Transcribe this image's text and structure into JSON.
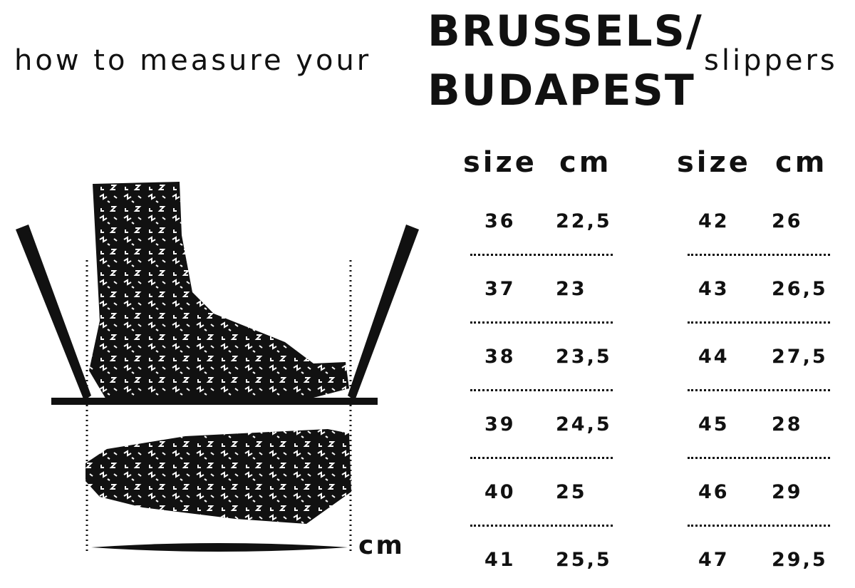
{
  "title": {
    "prefix": "how to measure your",
    "model_line1": "BRUSSELS/",
    "model_line2": "BUDAPEST",
    "suffix": "slippers"
  },
  "illustration": {
    "unit_label": "cm",
    "icons": [
      "foot-side-icon",
      "foot-sole-icon",
      "pencil-icon"
    ]
  },
  "size_table": {
    "headers": {
      "size": "size",
      "cm": "cm"
    },
    "left": [
      {
        "size": "36",
        "cm": "22,5"
      },
      {
        "size": "37",
        "cm": "23"
      },
      {
        "size": "38",
        "cm": "23,5"
      },
      {
        "size": "39",
        "cm": "24,5"
      },
      {
        "size": "40",
        "cm": "25"
      },
      {
        "size": "41",
        "cm": "25,5"
      }
    ],
    "right": [
      {
        "size": "42",
        "cm": "26"
      },
      {
        "size": "43",
        "cm": "26,5"
      },
      {
        "size": "44",
        "cm": "27,5"
      },
      {
        "size": "45",
        "cm": "28"
      },
      {
        "size": "46",
        "cm": "29"
      },
      {
        "size": "47",
        "cm": "29,5"
      }
    ]
  }
}
